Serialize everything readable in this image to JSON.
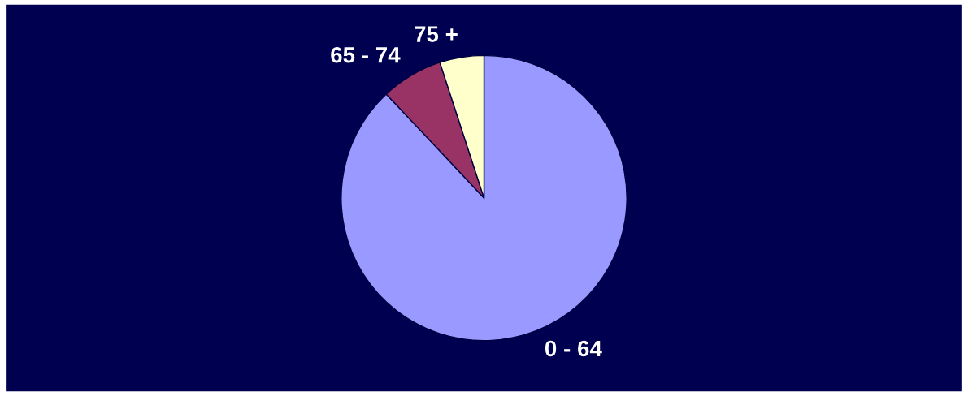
{
  "chart_data": {
    "type": "pie",
    "categories": [
      "0 - 64",
      "65 - 74",
      "75 +"
    ],
    "values": [
      88,
      7,
      5
    ],
    "colors": [
      "#9999ff",
      "#993366",
      "#ffffcc"
    ]
  }
}
